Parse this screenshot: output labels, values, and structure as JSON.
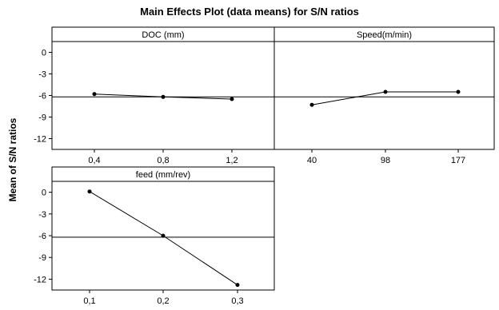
{
  "chart_data": {
    "type": "line",
    "title": "Main Effects Plot (data means) for S/N ratios",
    "ylabel": "Mean of S/N ratios",
    "ylim": [
      -13.5,
      1.5
    ],
    "yticks": [
      0,
      -3,
      -6,
      -9,
      -12
    ],
    "overall_mean": -6.2,
    "panels": [
      {
        "name": "DOC (mm)",
        "categories": [
          "0,4",
          "0,8",
          "1,2"
        ],
        "values": [
          -5.8,
          -6.2,
          -6.5
        ]
      },
      {
        "name": "Speed(m/min)",
        "categories": [
          "40",
          "98",
          "177"
        ],
        "values": [
          -7.3,
          -5.5,
          -5.5
        ]
      },
      {
        "name": "feed (mm/rev)",
        "categories": [
          "0,1",
          "0,2",
          "0,3"
        ],
        "values": [
          0.1,
          -6.0,
          -12.8
        ]
      }
    ]
  }
}
